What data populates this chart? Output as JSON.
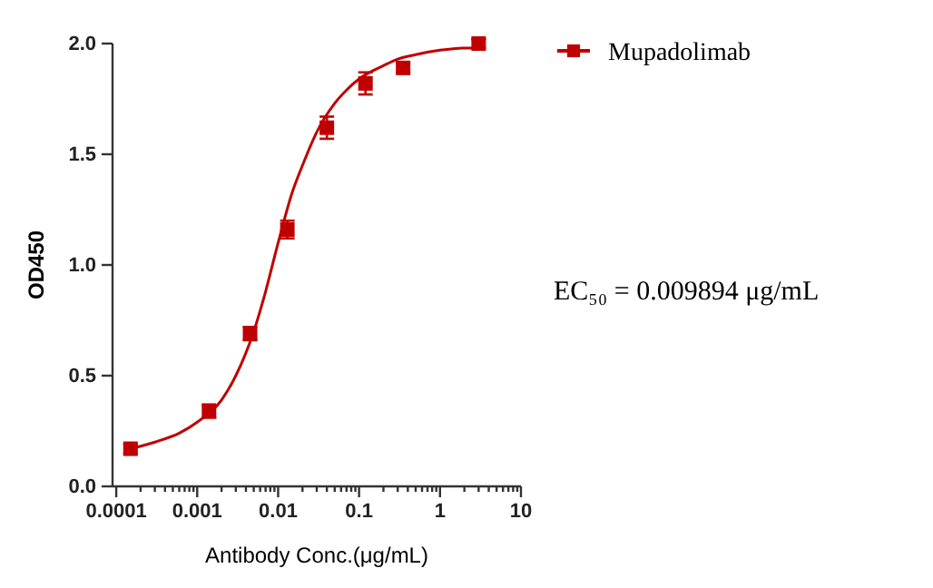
{
  "chart_data": {
    "type": "scatter",
    "xlabel": "Antibody Conc.(μg/mL)",
    "ylabel": "OD450",
    "log": "x",
    "legend": "top right",
    "xlim": [
      9e-05,
      10
    ],
    "ylim": [
      0,
      2
    ],
    "xticks": [
      {
        "value": 0.0001,
        "label": "0.0001"
      },
      {
        "value": 0.0002,
        "label": null
      },
      {
        "value": 0.0003,
        "label": null
      },
      {
        "value": 0.0004,
        "label": null
      },
      {
        "value": 0.0005,
        "label": null
      },
      {
        "value": 0.0006,
        "label": null
      },
      {
        "value": 0.0007,
        "label": null
      },
      {
        "value": 0.0008,
        "label": null
      },
      {
        "value": 0.0009,
        "label": null
      },
      {
        "value": 0.001,
        "label": "0.001"
      },
      {
        "value": 0.002,
        "label": null
      },
      {
        "value": 0.003,
        "label": null
      },
      {
        "value": 0.004,
        "label": null
      },
      {
        "value": 0.005,
        "label": null
      },
      {
        "value": 0.006,
        "label": null
      },
      {
        "value": 0.007,
        "label": null
      },
      {
        "value": 0.008,
        "label": null
      },
      {
        "value": 0.009,
        "label": null
      },
      {
        "value": 0.01,
        "label": "0.01"
      },
      {
        "value": 0.02,
        "label": null
      },
      {
        "value": 0.03,
        "label": null
      },
      {
        "value": 0.04,
        "label": null
      },
      {
        "value": 0.05,
        "label": null
      },
      {
        "value": 0.06,
        "label": null
      },
      {
        "value": 0.07,
        "label": null
      },
      {
        "value": 0.08,
        "label": null
      },
      {
        "value": 0.09,
        "label": null
      },
      {
        "value": 0.1,
        "label": "0.1"
      },
      {
        "value": 0.2,
        "label": null
      },
      {
        "value": 0.3,
        "label": null
      },
      {
        "value": 0.4,
        "label": null
      },
      {
        "value": 0.5,
        "label": null
      },
      {
        "value": 0.6,
        "label": null
      },
      {
        "value": 0.7,
        "label": null
      },
      {
        "value": 0.8,
        "label": null
      },
      {
        "value": 0.9,
        "label": null
      },
      {
        "value": 1,
        "label": "1"
      },
      {
        "value": 2,
        "label": null
      },
      {
        "value": 3,
        "label": null
      },
      {
        "value": 4,
        "label": null
      },
      {
        "value": 5,
        "label": null
      },
      {
        "value": 6,
        "label": null
      },
      {
        "value": 7,
        "label": null
      },
      {
        "value": 8,
        "label": null
      },
      {
        "value": 9,
        "label": null
      },
      {
        "value": 10,
        "label": "10"
      }
    ],
    "yticks": [
      {
        "value": 0,
        "label": "0.0"
      },
      {
        "value": 0.5,
        "label": "0.5"
      },
      {
        "value": 1,
        "label": "1.0"
      },
      {
        "value": 1.5,
        "label": "1.5"
      },
      {
        "value": 2,
        "label": "2.0"
      }
    ],
    "series": [
      {
        "name": "Mupadolimab",
        "marker": "square",
        "color": "#c00000",
        "x": [
          0.00015,
          0.0014,
          0.0045,
          0.013,
          0.04,
          0.12,
          0.35,
          3
        ],
        "values": [
          0.17,
          0.34,
          0.69,
          1.16,
          1.62,
          1.82,
          1.89,
          2.0
        ],
        "errors": [
          0.02,
          0.03,
          0.03,
          0.04,
          0.05,
          0.05,
          0.02,
          0.02
        ]
      },
      {
        "type": "line",
        "marker": "none",
        "color": "#c00000",
        "x": [
          0.00015,
          0.0003,
          0.0006,
          0.001,
          0.002,
          0.003,
          0.005,
          0.007,
          0.01,
          0.015,
          0.02,
          0.03,
          0.05,
          0.07,
          0.1,
          0.2,
          0.3,
          0.5,
          1,
          2,
          3
        ],
        "values": [
          0.17,
          0.2,
          0.24,
          0.29,
          0.39,
          0.5,
          0.7,
          0.88,
          1.1,
          1.33,
          1.45,
          1.6,
          1.73,
          1.79,
          1.84,
          1.9,
          1.93,
          1.95,
          1.97,
          1.98,
          1.98
        ]
      }
    ],
    "annotations": [
      "EC₅₀ = 0.009894 μg/mL"
    ]
  }
}
